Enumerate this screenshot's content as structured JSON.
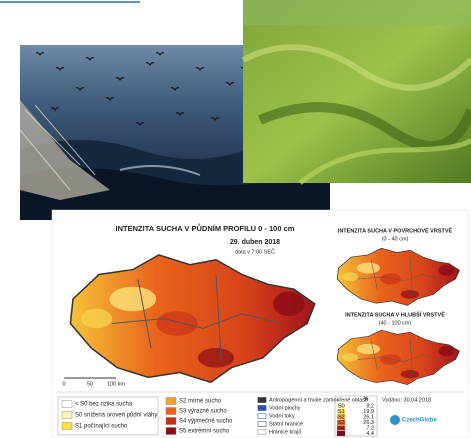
{
  "map": {
    "title": "INTENZITA SUCHA V PŮDNÍM PROFILU 0 - 100 cm",
    "date": "29. duben 2018",
    "time": "data v 7:00 SEČ",
    "inset_top": {
      "title": "INTENZITA SUCHA V POVRCHOVÉ VRSTVĚ",
      "depth": "(0 - 40 cm)"
    },
    "inset_bottom": {
      "title": "INTENZITA SUCHA V HLUBŠÍ VRSTVĚ",
      "depth": "(40 - 100 cm)"
    },
    "legend": [
      "< S0 bez rizika sucha",
      "S0 snížená úroveň půdní vláhy",
      "S1 počínající sucho",
      "S2 mírné sucho",
      "S3 výrazné sucho",
      "S4 výjimečné sucho",
      "S5 extrémní sucho"
    ],
    "symbols": [
      "Antropogenní a trvale zamokřené oblasti",
      "Vodní plochy",
      "Vodní toky",
      "Státní hranice",
      "Hranice krajů"
    ],
    "stats": {
      "header": "%",
      "rows": [
        {
          "class": "S0",
          "value": "8.2"
        },
        {
          "class": "S1",
          "value": "19.9"
        },
        {
          "class": "S2",
          "value": "26.1"
        },
        {
          "class": "S3",
          "value": "26.3"
        },
        {
          "class": "S4",
          "value": "7.2"
        },
        {
          "class": "S5",
          "value": "4.4"
        }
      ]
    },
    "issued": "Vydáno: 30.04.2018",
    "logo": "CzechGlobe",
    "scale": [
      "0",
      "50",
      "100 km"
    ]
  }
}
